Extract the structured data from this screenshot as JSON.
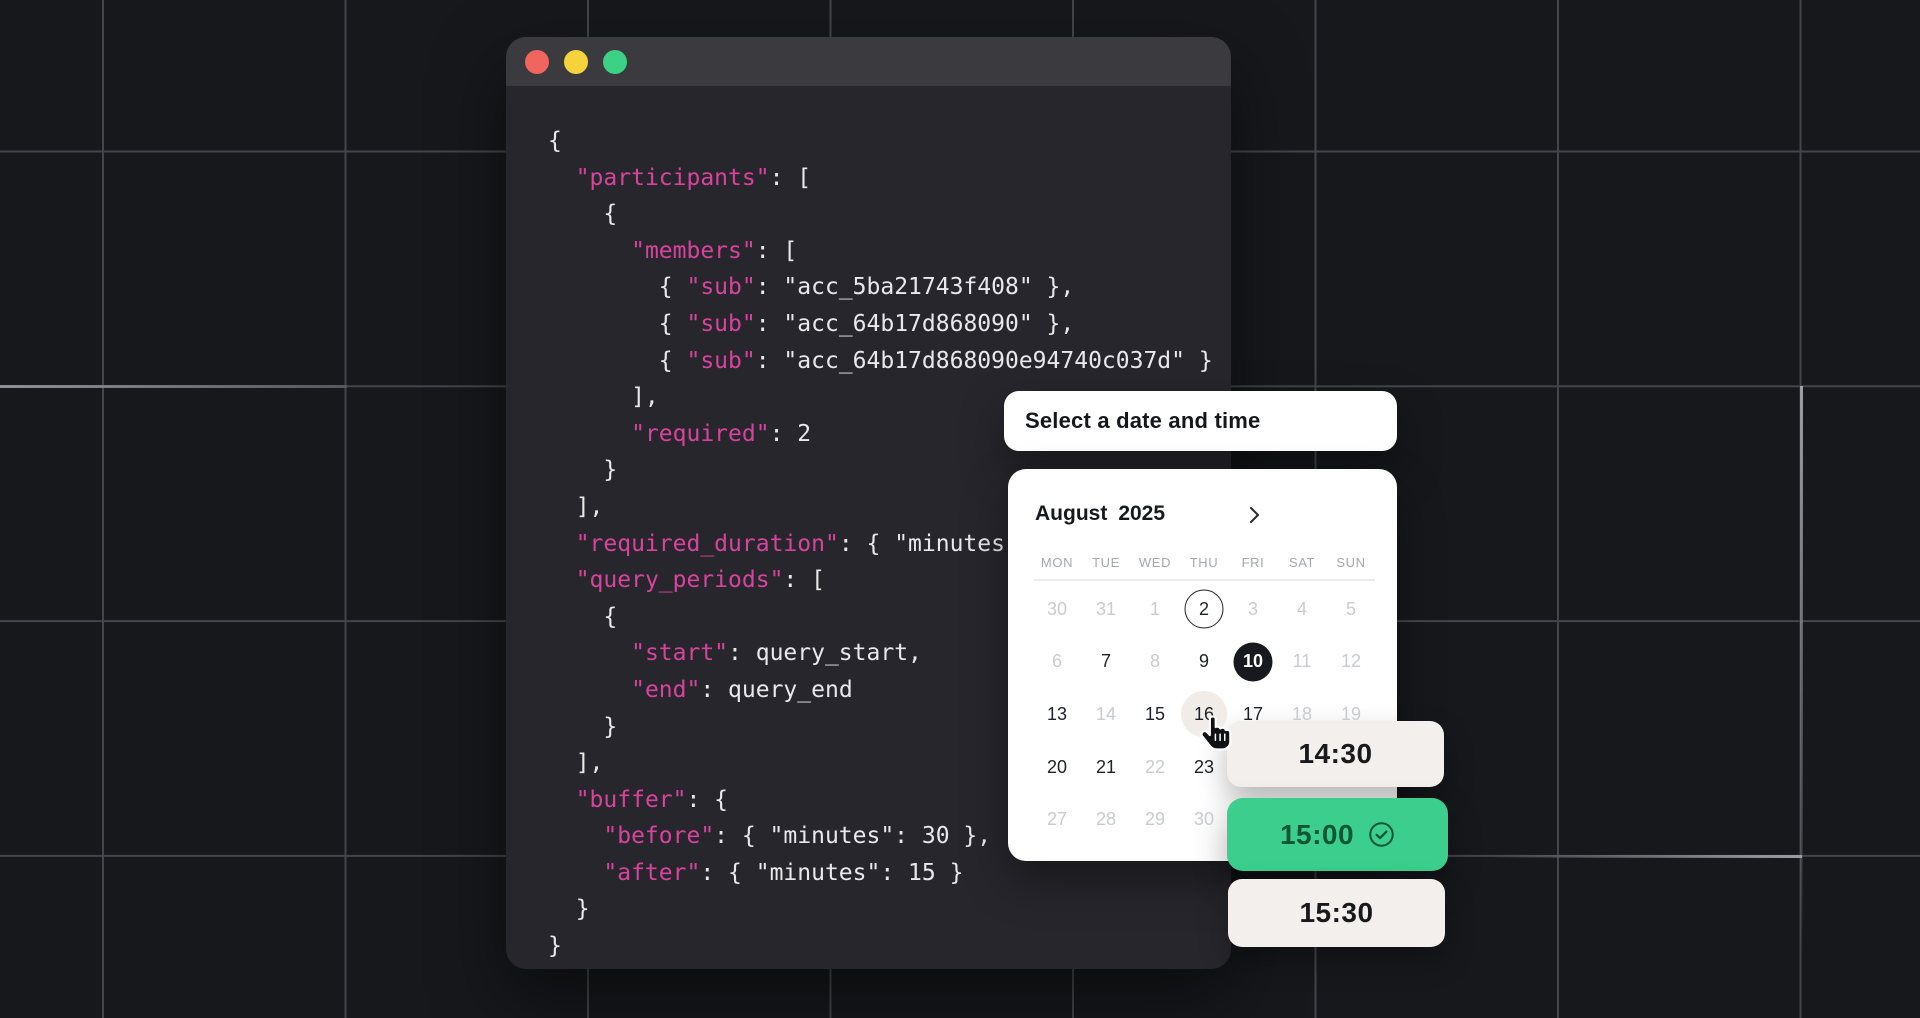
{
  "colors": {
    "background": "#17181c",
    "grid_line": "#43454a",
    "window_body": "#27262c",
    "window_titlebar": "#3a3a3f",
    "code_text": "#e9e9eb",
    "code_key_pink": "#d7449e",
    "card_white": "#ffffff",
    "accent_green": "#3bce8c",
    "green_text": "#0c5634",
    "selected_day": "#17191e",
    "muted_day": "#c9cbcf",
    "hover_day_bg": "#f2ece8"
  },
  "window": {
    "traffic_lights": [
      {
        "name": "close",
        "color": "#f0655e"
      },
      {
        "name": "minimize",
        "color": "#f5d33d"
      },
      {
        "name": "zoom",
        "color": "#3bd286"
      }
    ]
  },
  "code": {
    "lines": [
      [
        [
          "w",
          "{"
        ]
      ],
      [
        [
          "w",
          "  "
        ],
        [
          "k",
          "\"participants\""
        ],
        [
          "w",
          ": ["
        ]
      ],
      [
        [
          "w",
          "    {"
        ]
      ],
      [
        [
          "w",
          "      "
        ],
        [
          "k",
          "\"members\""
        ],
        [
          "w",
          ": ["
        ]
      ],
      [
        [
          "w",
          "        { "
        ],
        [
          "k",
          "\"sub\""
        ],
        [
          "w",
          ": \"acc_5ba21743f408\" },"
        ]
      ],
      [
        [
          "w",
          "        { "
        ],
        [
          "k",
          "\"sub\""
        ],
        [
          "w",
          ": \"acc_64b17d868090\" },"
        ]
      ],
      [
        [
          "w",
          "        { "
        ],
        [
          "k",
          "\"sub\""
        ],
        [
          "w",
          ": \"acc_64b17d868090e94740c037d\" }"
        ]
      ],
      [
        [
          "w",
          "      ],"
        ]
      ],
      [
        [
          "w",
          "      "
        ],
        [
          "k",
          "\"required\""
        ],
        [
          "w",
          ": 2"
        ]
      ],
      [
        [
          "w",
          "    }"
        ]
      ],
      [
        [
          "w",
          "  ],"
        ]
      ],
      [
        [
          "w",
          "  "
        ],
        [
          "k",
          "\"required_duration\""
        ],
        [
          "w",
          ": { \"minutes"
        ]
      ],
      [
        [
          "w",
          "  "
        ],
        [
          "k",
          "\"query_periods\""
        ],
        [
          "w",
          ": ["
        ]
      ],
      [
        [
          "w",
          "    {"
        ]
      ],
      [
        [
          "w",
          "      "
        ],
        [
          "k",
          "\"start\""
        ],
        [
          "w",
          ": query_start,"
        ]
      ],
      [
        [
          "w",
          "      "
        ],
        [
          "k",
          "\"end\""
        ],
        [
          "w",
          ": query_end"
        ]
      ],
      [
        [
          "w",
          "    }"
        ]
      ],
      [
        [
          "w",
          "  ],"
        ]
      ],
      [
        [
          "w",
          "  "
        ],
        [
          "k",
          "\"buffer\""
        ],
        [
          "w",
          ": {"
        ]
      ],
      [
        [
          "w",
          "    "
        ],
        [
          "k",
          "\"before\""
        ],
        [
          "w",
          ": { \"minutes\": 30 },"
        ]
      ],
      [
        [
          "w",
          "    "
        ],
        [
          "k",
          "\"after\""
        ],
        [
          "w",
          ": { \"minutes\": 15 }"
        ]
      ],
      [
        [
          "w",
          "  }"
        ]
      ],
      [
        [
          "w",
          "}"
        ]
      ]
    ]
  },
  "picker": {
    "header": "Select a date and time",
    "calendar": {
      "month": "August",
      "year": "2025",
      "next_icon": "chevron-right",
      "weekdays": [
        "MON",
        "TUE",
        "WED",
        "THU",
        "FRI",
        "SAT",
        "SUN"
      ],
      "rows": [
        [
          {
            "d": "30",
            "s": "muted"
          },
          {
            "d": "31",
            "s": "muted"
          },
          {
            "d": "1",
            "s": "muted"
          },
          {
            "d": "2",
            "s": "outlined"
          },
          {
            "d": "3",
            "s": "muted"
          },
          {
            "d": "4",
            "s": "muted"
          },
          {
            "d": "5",
            "s": "muted"
          }
        ],
        [
          {
            "d": "6",
            "s": "muted"
          },
          {
            "d": "7",
            "s": "normal"
          },
          {
            "d": "8",
            "s": "muted"
          },
          {
            "d": "9",
            "s": "normal"
          },
          {
            "d": "10",
            "s": "selected"
          },
          {
            "d": "11",
            "s": "muted"
          },
          {
            "d": "12",
            "s": "muted"
          }
        ],
        [
          {
            "d": "13",
            "s": "normal"
          },
          {
            "d": "14",
            "s": "muted"
          },
          {
            "d": "15",
            "s": "normal"
          },
          {
            "d": "16",
            "s": "hover"
          },
          {
            "d": "17",
            "s": "normal"
          },
          {
            "d": "18",
            "s": "muted"
          },
          {
            "d": "19",
            "s": "muted"
          }
        ],
        [
          {
            "d": "20",
            "s": "normal"
          },
          {
            "d": "21",
            "s": "normal"
          },
          {
            "d": "22",
            "s": "muted"
          },
          {
            "d": "23",
            "s": "normal"
          },
          {
            "d": "",
            "s": "blank"
          },
          {
            "d": "",
            "s": "blank"
          },
          {
            "d": "",
            "s": "blank"
          }
        ],
        [
          {
            "d": "27",
            "s": "muted"
          },
          {
            "d": "28",
            "s": "muted"
          },
          {
            "d": "29",
            "s": "muted"
          },
          {
            "d": "30",
            "s": "muted"
          },
          {
            "d": "",
            "s": "blank"
          },
          {
            "d": "",
            "s": "blank"
          },
          {
            "d": "",
            "s": "blank"
          }
        ]
      ]
    },
    "times": [
      {
        "label": "14:30",
        "state": "default"
      },
      {
        "label": "15:00",
        "state": "selected",
        "icon": "check-circle"
      },
      {
        "label": "15:30",
        "state": "default"
      }
    ],
    "cursor_icon": "hand-pointer"
  }
}
